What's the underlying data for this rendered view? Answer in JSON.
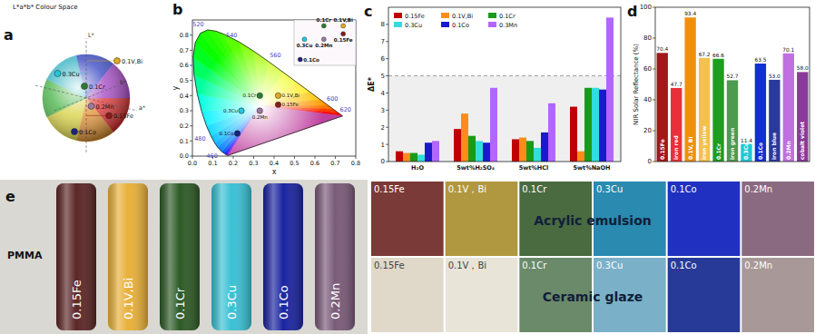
{
  "chart_data": [
    {
      "type": "scatter3d",
      "panel_label": "a",
      "title": "L*a*b* Colour Space",
      "axis_labels": [
        "L*",
        "a*",
        "b*"
      ],
      "tick_labels": false,
      "points": [
        {
          "name": "0.15Fe",
          "L": 35,
          "a": 22,
          "b": 15,
          "color": "#8b1a1a"
        },
        {
          "name": "0.1V,Bi",
          "L": 75,
          "a": 5,
          "b": 60,
          "color": "#e0a820"
        },
        {
          "name": "0.1Cr",
          "L": 55,
          "a": -15,
          "b": 20,
          "color": "#2e7d32"
        },
        {
          "name": "0.3Cu",
          "L": 70,
          "a": -30,
          "b": -15,
          "color": "#26c6da"
        },
        {
          "name": "0.1Co",
          "L": 30,
          "a": 15,
          "b": -50,
          "color": "#1a237e"
        },
        {
          "name": "0.2Mn",
          "L": 45,
          "a": 10,
          "b": -5,
          "color": "#9c7aa0"
        }
      ]
    },
    {
      "type": "chromaticity",
      "panel_label": "b",
      "x_label": "x",
      "y_label": "y",
      "xlim": [
        0,
        0.8
      ],
      "ylim": [
        0,
        0.9
      ],
      "xticks": [
        {
          "value": 0,
          "label": "0.0"
        },
        {
          "value": 0.1,
          "label": "0.1"
        },
        {
          "value": 0.2,
          "label": "0.2"
        },
        {
          "value": 0.3,
          "label": "0.3"
        },
        {
          "value": 0.4,
          "label": "0.4"
        },
        {
          "value": 0.5,
          "label": "0.5"
        },
        {
          "value": 0.6,
          "label": "0.6"
        },
        {
          "value": 0.7,
          "label": "0.7"
        },
        {
          "value": 0.8,
          "label": "0.8"
        }
      ],
      "yticks": [
        {
          "value": 0,
          "label": "0.0"
        },
        {
          "value": 0.1,
          "label": "0.1"
        },
        {
          "value": 0.2,
          "label": "0.2"
        },
        {
          "value": 0.3,
          "label": "0.3"
        },
        {
          "value": 0.4,
          "label": "0.4"
        },
        {
          "value": 0.5,
          "label": "0.5"
        },
        {
          "value": 0.6,
          "label": "0.6"
        },
        {
          "value": 0.7,
          "label": "0.7"
        },
        {
          "value": 0.8,
          "label": "0.8"
        }
      ],
      "locus_labels": [
        460,
        480,
        520,
        540,
        560,
        600,
        620
      ],
      "points": [
        {
          "name": "0.15Fe",
          "x": 0.42,
          "y": 0.34,
          "color": "#8b1a1a"
        },
        {
          "name": "0.1V,Bi",
          "x": 0.42,
          "y": 0.4,
          "color": "#e0a820"
        },
        {
          "name": "0.1Cr",
          "x": 0.33,
          "y": 0.4,
          "color": "#2e7d32"
        },
        {
          "name": "0.3Cu",
          "x": 0.24,
          "y": 0.3,
          "color": "#26c6da"
        },
        {
          "name": "0.1Co",
          "x": 0.22,
          "y": 0.15,
          "color": "#1a237e"
        },
        {
          "name": "0.2Mn",
          "x": 0.33,
          "y": 0.3,
          "color": "#9c7aa0"
        }
      ]
    },
    {
      "type": "bar",
      "panel_label": "c",
      "y_label": "ΔE*",
      "categories": [
        "H₂O",
        "5wt%H₂SO₄",
        "5wt%HCl",
        "5wt%NaOH"
      ],
      "series": [
        {
          "name": "0.15Fe",
          "color": "#c00000",
          "values": [
            0.6,
            1.9,
            1.3,
            3.2
          ]
        },
        {
          "name": "0.1V,Bi",
          "color": "#ff8c1a",
          "values": [
            0.5,
            2.8,
            1.4,
            0.6
          ]
        },
        {
          "name": "0.1Cr",
          "color": "#1a9a1a",
          "values": [
            0.5,
            1.5,
            1.2,
            4.3
          ]
        },
        {
          "name": "0.3Cu",
          "color": "#33dddd",
          "values": [
            0.4,
            1.2,
            0.8,
            4.3
          ]
        },
        {
          "name": "0.1Co",
          "color": "#1a1acc",
          "values": [
            1.1,
            1.1,
            1.7,
            4.2
          ]
        },
        {
          "name": "0.3Mn",
          "color": "#b266ff",
          "values": [
            1.2,
            4.3,
            3.4,
            8.4
          ]
        }
      ],
      "reference_line": 5,
      "ylim": [
        0,
        9
      ],
      "yticks": [
        0,
        1,
        2,
        3,
        4,
        5,
        6,
        7,
        8
      ],
      "legend": "top-left"
    },
    {
      "type": "bar",
      "panel_label": "d",
      "y_label": "NIR Solar Reflectance (%)",
      "categories": [
        "0.15Fe",
        "iron red",
        "0.1V, Bi",
        "iron yellow",
        "0.1Cr",
        "iron green",
        "0.3Cu",
        "0.1Co",
        "iron blue",
        "0.2Mn",
        "cobalt violet"
      ],
      "values": [
        70.4,
        47.7,
        93.4,
        67.2,
        66.6,
        52.7,
        11.4,
        63.5,
        53.0,
        70.1,
        58.0
      ],
      "value_labels": [
        "70.4",
        "47.7",
        "93.4",
        "67.2",
        "66.6",
        "52.7",
        "11.4",
        "63.5",
        "53.0",
        "70.1",
        "58.0"
      ],
      "colors": [
        "#a01818",
        "#e8303a",
        "#f0900a",
        "#f2c14e",
        "#1e9e1e",
        "#4e9a4e",
        "#20c8d8",
        "#1030d0",
        "#2a3a9a",
        "#c070e0",
        "#8a3a9a"
      ],
      "ylim": [
        0,
        100
      ],
      "yticks": [
        0,
        20,
        40,
        60,
        80,
        100
      ],
      "data_labels": true
    }
  ],
  "panel_e": {
    "panel_label": "e",
    "tubes_label": "PMMA",
    "tubes": [
      {
        "name": "0.15Fe",
        "color": "#5c2626"
      },
      {
        "name": "0.1V,Bi",
        "color": "#e8b03a"
      },
      {
        "name": "0.1Cr",
        "color": "#2e5a26"
      },
      {
        "name": "0.3Cu",
        "color": "#3ac0d4"
      },
      {
        "name": "0.1Co",
        "color": "#1a24a0"
      },
      {
        "name": "0.2Mn",
        "color": "#7a5a78"
      }
    ],
    "tile_rows": [
      {
        "label": "Acrylic emulsion",
        "tiles": [
          {
            "name": "0.15Fe",
            "color": "#7a3a38"
          },
          {
            "name": "0.1V，Bi",
            "color": "#b09840"
          },
          {
            "name": "0.1Cr",
            "color": "#4a6a40"
          },
          {
            "name": "0.3Cu",
            "color": "#2a8ab0"
          },
          {
            "name": "0.1Co",
            "color": "#2030c0"
          },
          {
            "name": "0.2Mn",
            "color": "#8a6a80"
          }
        ]
      },
      {
        "label": "Ceramic glaze",
        "tiles": [
          {
            "name": "0.15Fe",
            "color": "#e0d8c8"
          },
          {
            "name": "0.1V，Bi",
            "color": "#e8e4d8"
          },
          {
            "name": "0.1Cr",
            "color": "#6a8a6a"
          },
          {
            "name": "0.3Cu",
            "color": "#7ab0c8"
          },
          {
            "name": "0.1Co",
            "color": "#283a98"
          },
          {
            "name": "0.2Mn",
            "color": "#a89898"
          }
        ]
      }
    ]
  }
}
